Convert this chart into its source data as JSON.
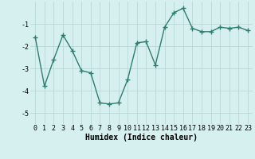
{
  "x": [
    0,
    1,
    2,
    3,
    4,
    5,
    6,
    7,
    8,
    9,
    10,
    11,
    12,
    13,
    14,
    15,
    16,
    17,
    18,
    19,
    20,
    21,
    22,
    23
  ],
  "y": [
    -1.6,
    -3.8,
    -2.6,
    -1.5,
    -2.2,
    -3.1,
    -3.2,
    -4.55,
    -4.6,
    -4.55,
    -3.5,
    -1.85,
    -1.8,
    -2.85,
    -1.15,
    -0.5,
    -0.3,
    -1.2,
    -1.35,
    -1.35,
    -1.15,
    -1.2,
    -1.15,
    -1.3
  ],
  "line_color": "#2e7d6e",
  "marker": "+",
  "marker_size": 4,
  "bg_color": "#d6f0ef",
  "grid_color": "#b8d8d5",
  "xlabel": "Humidex (Indice chaleur)",
  "ylim": [
    -5.5,
    -0.0
  ],
  "yticks": [
    -5,
    -4,
    -3,
    -2,
    -1
  ],
  "xticks": [
    0,
    1,
    2,
    3,
    4,
    5,
    6,
    7,
    8,
    9,
    10,
    11,
    12,
    13,
    14,
    15,
    16,
    17,
    18,
    19,
    20,
    21,
    22,
    23
  ],
  "xlabel_fontsize": 7,
  "tick_fontsize": 6,
  "linewidth": 1.0
}
